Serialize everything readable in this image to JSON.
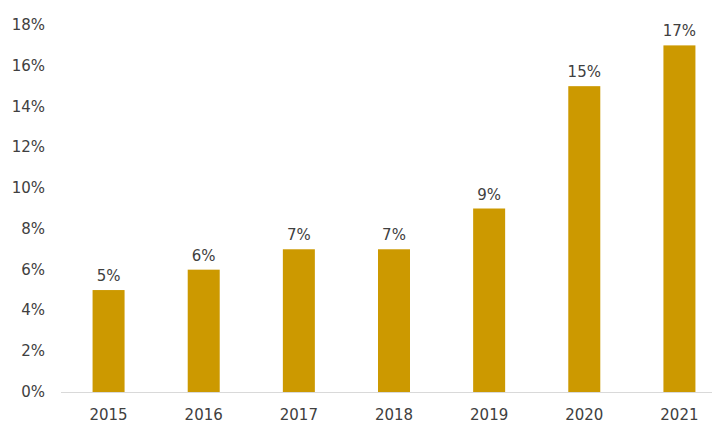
{
  "chart_data": {
    "type": "bar",
    "categories": [
      "2015",
      "2016",
      "2017",
      "2018",
      "2019",
      "2020",
      "2021"
    ],
    "values": [
      5,
      6,
      7,
      7,
      9,
      15,
      17
    ],
    "value_labels": [
      "5%",
      "6%",
      "7%",
      "7%",
      "9%",
      "15%",
      "17%"
    ],
    "color": "#cc9900",
    "ylim": [
      0,
      18
    ],
    "yticks": [
      {
        "value": 0,
        "label": "0%"
      },
      {
        "value": 2,
        "label": "2%"
      },
      {
        "value": 4,
        "label": "4%"
      },
      {
        "value": 6,
        "label": "6%"
      },
      {
        "value": 8,
        "label": "8%"
      },
      {
        "value": 10,
        "label": "10%"
      },
      {
        "value": 12,
        "label": "12%"
      },
      {
        "value": 14,
        "label": "14%"
      },
      {
        "value": 16,
        "label": "16%"
      },
      {
        "value": 18,
        "label": "18%"
      }
    ],
    "grid": false,
    "data_labels": true
  }
}
